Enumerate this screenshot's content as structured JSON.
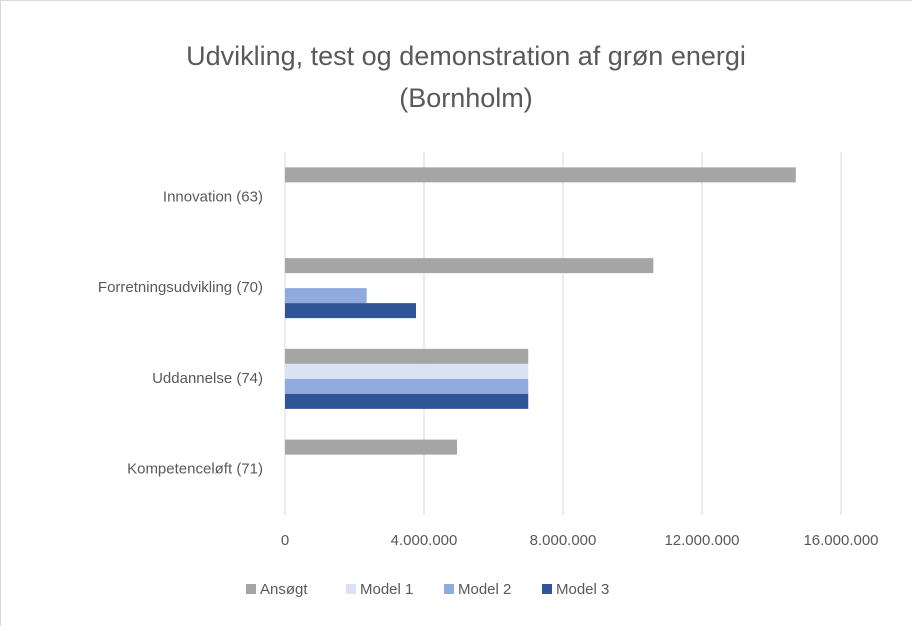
{
  "chart_data": {
    "type": "hbar",
    "title": [
      "Udvikling, test og demonstration af grøn energi",
      "(Bornholm)"
    ],
    "categories": [
      "Innovation (63)",
      "Forretningsudvikling (70)",
      "Uddannelse (74)",
      "Kompetenceløft (71)"
    ],
    "series": [
      {
        "name": "Ansøgt",
        "color": "#a5a5a5",
        "values": [
          14700000,
          10600000,
          7000000,
          4950000
        ]
      },
      {
        "name": "Model 1",
        "color": "#dae3f3",
        "values": [
          0,
          0,
          7000000,
          0
        ]
      },
      {
        "name": "Model 2",
        "color": "#8faadc",
        "values": [
          0,
          2350000,
          7000000,
          0
        ]
      },
      {
        "name": "Model 3",
        "color": "#2f5597",
        "values": [
          0,
          3770000,
          7000000,
          0
        ]
      }
    ],
    "xlim": [
      0,
      16000000
    ],
    "xticks": [
      0,
      {
        "value": 4000000,
        "label": "4.000.000"
      },
      {
        "value": 8000000,
        "label": "8.000.000"
      },
      {
        "value": 12000000,
        "label": "12.000.000"
      },
      {
        "value": 16000000,
        "label": "16.000.000"
      }
    ],
    "grid": true,
    "legend": "bottom"
  }
}
